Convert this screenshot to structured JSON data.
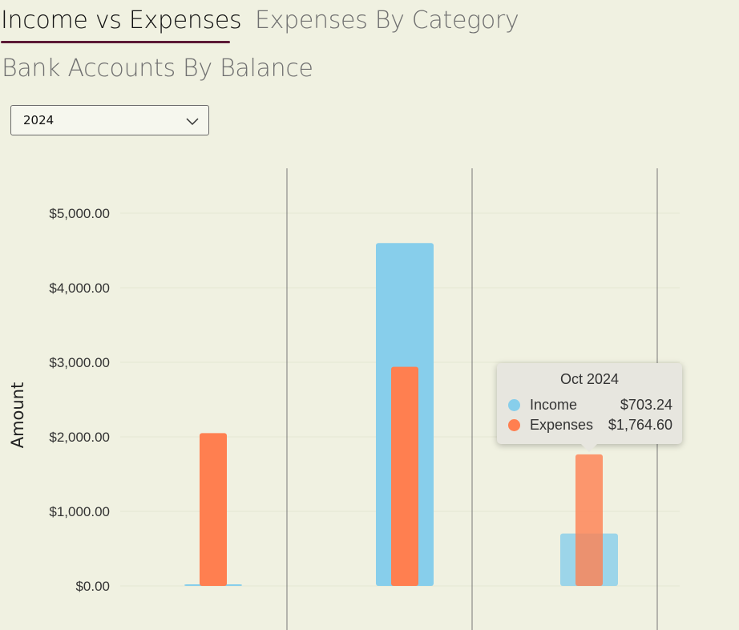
{
  "tabs": [
    {
      "label": "Income vs Expenses",
      "active": true
    },
    {
      "label": "Expenses By Category",
      "active": false
    },
    {
      "label": "Bank Accounts By Balance",
      "active": false
    }
  ],
  "year_select": {
    "value": "2024"
  },
  "colors": {
    "income": "#87ceeb",
    "expenses": "#ff7f50",
    "accent": "#5c1a36"
  },
  "chart_data": {
    "type": "bar",
    "ylabel": "Amount",
    "ylim": [
      0,
      5000
    ],
    "yticks": [
      "$0.00",
      "$1,000.00",
      "$2,000.00",
      "$3,000.00",
      "$4,000.00",
      "$5,000.00"
    ],
    "series": [
      {
        "name": "Income",
        "values": [
          15,
          4600,
          703.24
        ]
      },
      {
        "name": "Expenses",
        "values": [
          2050,
          2940,
          1764.6
        ]
      }
    ]
  },
  "tooltip": {
    "title": "Oct 2024",
    "rows": [
      {
        "name": "Income",
        "value": "$703.24"
      },
      {
        "name": "Expenses",
        "value": "$1,764.60"
      }
    ]
  }
}
